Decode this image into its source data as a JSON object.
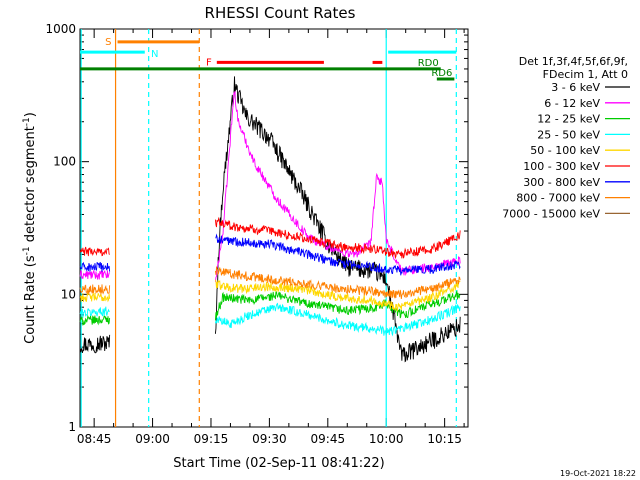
{
  "chart_data": {
    "type": "line",
    "title": "RHESSI Count Rates",
    "xlabel": "Start Time (02-Sep-11 08:41:22)",
    "ylabel_main": "Count Rate (s",
    "ylabel_sup1": "-1",
    "ylabel_mid": " detector segment",
    "ylabel_sup2": "-1",
    "ylabel_end": ")",
    "y_scale": "log",
    "ylim": [
      1,
      1000
    ],
    "xlim_minutes": [
      "08:41:22",
      "10:21:00"
    ],
    "x_ticks": [
      "08:45",
      "09:00",
      "09:15",
      "09:30",
      "09:45",
      "10:00",
      "10:15"
    ],
    "y_ticks": [
      "1",
      "10",
      "100",
      "1000"
    ],
    "grid": false,
    "legend_header": [
      "Det 1f,3f,4f,5f,6f,9f,",
      "FDecim 1, Att 0"
    ],
    "legend_position": "right",
    "series": [
      {
        "name": "3 - 6 keV",
        "color": "#000000",
        "points": [
          [
            "08:41:22",
            4.2
          ],
          [
            "08:49:00",
            4.3
          ],
          [
            "09:16:00",
            4.0
          ],
          [
            "09:17:00",
            22
          ],
          [
            "09:18:00",
            60
          ],
          [
            "09:21:00",
            380
          ],
          [
            "09:24:00",
            220
          ],
          [
            "09:30:00",
            150
          ],
          [
            "09:38:00",
            60
          ],
          [
            "09:45:00",
            24
          ],
          [
            "09:50:00",
            16
          ],
          [
            "09:57:00",
            15
          ],
          [
            "10:00:00",
            13
          ],
          [
            "10:04:00",
            3.4
          ],
          [
            "10:12:00",
            4.5
          ],
          [
            "10:19:00",
            5.8
          ]
        ]
      },
      {
        "name": "6 - 12 keV",
        "color": "#ff00ff",
        "points": [
          [
            "08:41:22",
            14
          ],
          [
            "08:49:00",
            14
          ],
          [
            "09:16:00",
            12
          ],
          [
            "09:18:00",
            28
          ],
          [
            "09:21:00",
            350
          ],
          [
            "09:22:00",
            200
          ],
          [
            "09:26:00",
            100
          ],
          [
            "09:32:00",
            52
          ],
          [
            "09:40:00",
            27
          ],
          [
            "09:48:00",
            21
          ],
          [
            "09:52:00",
            20
          ],
          [
            "09:56:00",
            24
          ],
          [
            "09:57:30",
            75
          ],
          [
            "09:59:00",
            70
          ],
          [
            "10:00:00",
            25
          ],
          [
            "10:04:00",
            15
          ],
          [
            "10:12:00",
            16
          ],
          [
            "10:19:00",
            18
          ]
        ]
      },
      {
        "name": "12 - 25 keV",
        "color": "#00cc00",
        "points": [
          [
            "08:41:22",
            6.3
          ],
          [
            "08:49:00",
            6.5
          ],
          [
            "09:16:00",
            6.5
          ],
          [
            "09:18:00",
            9.5
          ],
          [
            "09:25:00",
            9.0
          ],
          [
            "09:32:00",
            9.8
          ],
          [
            "09:40:00",
            8.5
          ],
          [
            "09:50:00",
            7.5
          ],
          [
            "09:57:00",
            8.0
          ],
          [
            "10:00:00",
            8.5
          ],
          [
            "10:04:00",
            7.0
          ],
          [
            "10:12:00",
            8.5
          ],
          [
            "10:19:00",
            10
          ]
        ]
      },
      {
        "name": "25 - 50 keV",
        "color": "#00ffff",
        "points": [
          [
            "08:41:22",
            7.2
          ],
          [
            "08:49:00",
            7.5
          ],
          [
            "09:16:00",
            6.5
          ],
          [
            "09:20:00",
            6.0
          ],
          [
            "09:25:00",
            7.0
          ],
          [
            "09:32:00",
            8.0
          ],
          [
            "09:40:00",
            7.0
          ],
          [
            "09:50:00",
            5.8
          ],
          [
            "09:57:00",
            5.5
          ],
          [
            "10:00:00",
            5.2
          ],
          [
            "10:04:00",
            5.5
          ],
          [
            "10:12:00",
            6.5
          ],
          [
            "10:19:00",
            8.0
          ]
        ]
      },
      {
        "name": "50 - 100 keV",
        "color": "#ffd700",
        "points": [
          [
            "08:41:22",
            9.5
          ],
          [
            "08:49:00",
            9.5
          ],
          [
            "09:16:00",
            12
          ],
          [
            "09:22:00",
            11
          ],
          [
            "09:30:00",
            11.5
          ],
          [
            "09:38:00",
            11
          ],
          [
            "09:48:00",
            9.5
          ],
          [
            "09:57:00",
            9.0
          ],
          [
            "10:00:00",
            8.5
          ],
          [
            "10:04:00",
            8.0
          ],
          [
            "10:12:00",
            9.5
          ],
          [
            "10:19:00",
            12
          ]
        ]
      },
      {
        "name": "100 - 300 keV",
        "color": "#ff0000",
        "points": [
          [
            "08:41:22",
            21
          ],
          [
            "08:49:00",
            21
          ],
          [
            "09:16:00",
            35
          ],
          [
            "09:22:00",
            32
          ],
          [
            "09:30:00",
            30
          ],
          [
            "09:40:00",
            26
          ],
          [
            "09:48:00",
            23
          ],
          [
            "09:57:00",
            22
          ],
          [
            "10:00:00",
            21
          ],
          [
            "10:04:00",
            20
          ],
          [
            "10:12:00",
            22
          ],
          [
            "10:19:00",
            28
          ]
        ]
      },
      {
        "name": "300 - 800 keV",
        "color": "#0000ff",
        "points": [
          [
            "08:41:22",
            16
          ],
          [
            "08:49:00",
            16
          ],
          [
            "09:16:00",
            26
          ],
          [
            "09:22:00",
            25
          ],
          [
            "09:30:00",
            24
          ],
          [
            "09:40:00",
            20
          ],
          [
            "09:48:00",
            17
          ],
          [
            "09:57:00",
            16
          ],
          [
            "10:00:00",
            15.5
          ],
          [
            "10:04:00",
            15
          ],
          [
            "10:12:00",
            15.5
          ],
          [
            "10:19:00",
            17
          ]
        ]
      },
      {
        "name": "800 - 7000 keV",
        "color": "#ff8000",
        "points": [
          [
            "08:41:22",
            11
          ],
          [
            "08:49:00",
            11
          ],
          [
            "09:16:00",
            15
          ],
          [
            "09:22:00",
            14
          ],
          [
            "09:30:00",
            13
          ],
          [
            "09:40:00",
            12
          ],
          [
            "09:48:00",
            11
          ],
          [
            "09:57:00",
            10.5
          ],
          [
            "10:00:00",
            10
          ],
          [
            "10:04:00",
            10
          ],
          [
            "10:12:00",
            11
          ],
          [
            "10:19:00",
            13
          ]
        ]
      },
      {
        "name": "7000 - 15000 keV",
        "color": "#996633",
        "points": []
      }
    ],
    "vertical_lines": [
      {
        "time": "08:41:40",
        "color": "#00ffff",
        "style": "solid"
      },
      {
        "time": "08:50:30",
        "color": "#ff8000",
        "style": "solid"
      },
      {
        "time": "08:59:00",
        "color": "#00ffff",
        "style": "dashed"
      },
      {
        "time": "09:12:00",
        "color": "#ff8000",
        "style": "dashed"
      },
      {
        "time": "10:00:00",
        "color": "#00ffff",
        "style": "solid"
      },
      {
        "time": "10:18:00",
        "color": "#00ffff",
        "style": "dashed"
      }
    ],
    "flag_bars": [
      {
        "label": "S",
        "color": "#ff8000",
        "start": "08:51:00",
        "end": "09:12:00",
        "value": 800
      },
      {
        "label": "N",
        "color": "#00ffff",
        "start": "08:41:22",
        "end": "08:58:00",
        "value": 670
      },
      {
        "label": "F",
        "color": "#ff0000",
        "start": "09:16:30",
        "end": "09:44:00",
        "value": 560
      },
      {
        "label": "",
        "color": "#ff0000",
        "start": "09:56:30",
        "end": "09:59:00",
        "value": 560
      },
      {
        "label": "",
        "color": "#00ffff",
        "start": "10:00:30",
        "end": "10:18:00",
        "value": 670
      },
      {
        "label": "RD0",
        "color": "#008000",
        "start": "08:41:22",
        "end": "10:14:00",
        "value": 500
      },
      {
        "label": "RD6",
        "color": "#008000",
        "start": "10:13:00",
        "end": "10:17:30",
        "value": 420
      }
    ]
  },
  "footer": {
    "date_stamp": "19-Oct-2021 18:22"
  }
}
